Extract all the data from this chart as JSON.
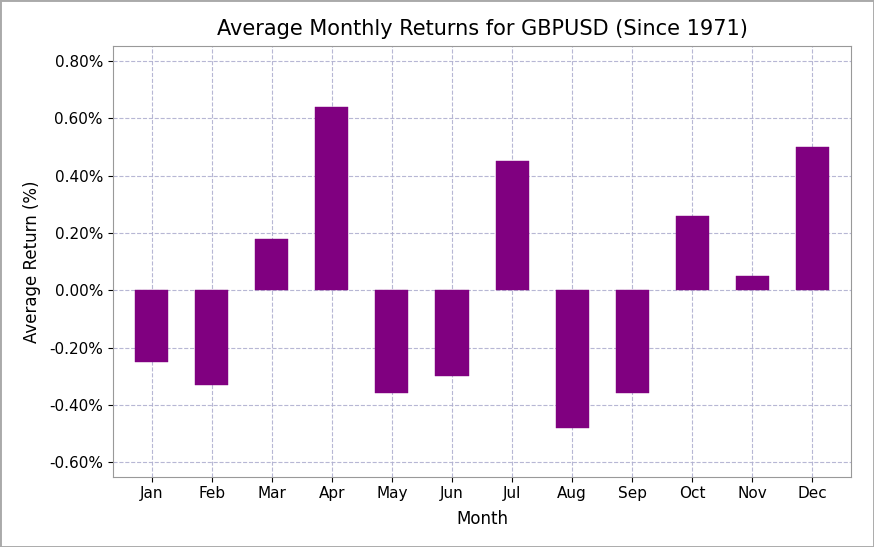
{
  "title": "Average Monthly Returns for GBPUSD (Since 1971)",
  "xlabel": "Month",
  "ylabel": "Average Return (%)",
  "categories": [
    "Jan",
    "Feb",
    "Mar",
    "Apr",
    "May",
    "Jun",
    "Jul",
    "Aug",
    "Sep",
    "Oct",
    "Nov",
    "Dec"
  ],
  "values": [
    -0.25,
    -0.33,
    0.18,
    0.64,
    -0.36,
    -0.3,
    0.45,
    -0.48,
    -0.36,
    0.26,
    0.05,
    0.5
  ],
  "bar_color": "#800080",
  "bar_edge_color": "#800080",
  "ylim": [
    -0.65,
    0.85
  ],
  "yticks": [
    -0.6,
    -0.4,
    -0.2,
    0.0,
    0.2,
    0.4,
    0.6,
    0.8
  ],
  "background_color": "#ffffff",
  "axes_bg_color": "#f8f8ff",
  "grid_color": "#b0b0d0",
  "title_fontsize": 15,
  "label_fontsize": 12,
  "tick_fontsize": 11,
  "bar_width": 0.55,
  "outer_border_color": "#cccccc"
}
